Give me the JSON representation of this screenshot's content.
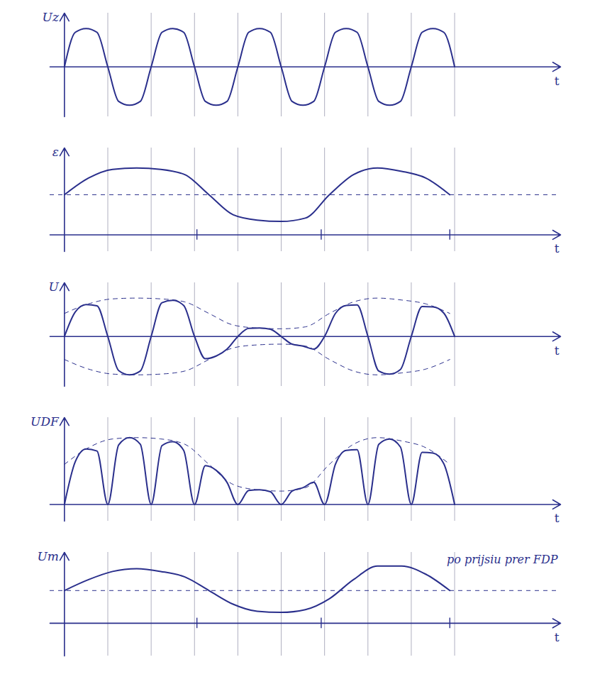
{
  "vertical_lines": [
    0.9,
    1.8,
    2.7,
    3.6,
    4.5,
    5.4,
    6.3,
    7.2,
    8.1
  ],
  "chart_data": [
    {
      "type": "line",
      "ylabel": "Uz",
      "xlabel": "t",
      "xlim": [
        -0.3,
        10.3
      ],
      "ylim": [
        -1.3,
        1.4
      ],
      "tick_labels": false,
      "color": "#2a2f8c",
      "series": [
        {
          "line_style": "solid",
          "x": [
            0,
            0.225,
            0.45,
            0.675,
            0.9,
            1.125,
            1.35,
            1.575,
            1.8,
            2.025,
            2.25,
            2.475,
            2.7,
            2.925,
            3.15,
            3.375,
            3.6,
            3.825,
            4.05,
            4.275,
            4.5,
            4.725,
            4.95,
            5.175,
            5.4,
            5.625,
            5.85,
            6.075,
            6.3,
            6.525,
            6.75,
            6.975,
            7.2,
            7.425,
            7.65,
            7.875,
            8.1
          ],
          "values": [
            0,
            0.9,
            1,
            0.9,
            0,
            -0.9,
            -1,
            -0.9,
            0,
            0.9,
            1,
            0.9,
            0,
            -0.9,
            -1,
            -0.9,
            0,
            0.9,
            1,
            0.9,
            0,
            -0.9,
            -1,
            -0.9,
            0,
            0.9,
            1,
            0.9,
            0,
            -0.9,
            -1,
            -0.9,
            0,
            0.9,
            1,
            0.9,
            0
          ]
        }
      ]
    },
    {
      "type": "line",
      "ylabel": "ε",
      "xlabel": "t",
      "xlim": [
        -0.3,
        10.3
      ],
      "ylim": [
        -0.25,
        1.3
      ],
      "tick_labels": false,
      "color": "#2a2f8c",
      "xticks": [
        2.75,
        5.33,
        8
      ],
      "reference_line": 0.6,
      "series": [
        {
          "line_style": "solid",
          "x": [
            0,
            0.5,
            1,
            1.5,
            2,
            2.5,
            3,
            3.5,
            4,
            4.5,
            5,
            5.5,
            6,
            6.5,
            7,
            7.5,
            8
          ],
          "values": [
            0.6,
            0.85,
            0.98,
            1.0,
            0.98,
            0.9,
            0.6,
            0.3,
            0.22,
            0.2,
            0.25,
            0.6,
            0.9,
            1.0,
            0.95,
            0.85,
            0.6
          ]
        }
      ]
    },
    {
      "type": "line",
      "ylabel": "U",
      "xlabel": "t",
      "xlim": [
        -0.3,
        10.3
      ],
      "ylim": [
        -1.3,
        1.4
      ],
      "tick_labels": false,
      "color": "#2a2f8c",
      "series": [
        {
          "line_style": "solid",
          "x": [
            0,
            0.225,
            0.45,
            0.675,
            0.9,
            1.125,
            1.35,
            1.575,
            1.8,
            2.025,
            2.25,
            2.475,
            2.7,
            2.925,
            3.15,
            3.375,
            3.6,
            3.825,
            4.05,
            4.275,
            4.5,
            4.725,
            4.95,
            5.175,
            5.4,
            5.625,
            5.85,
            6.075,
            6.3,
            6.525,
            6.75,
            6.975,
            7.2,
            7.425,
            7.65,
            7.875,
            8.1
          ],
          "values": [
            0,
            0.64,
            0.83,
            0.8,
            0,
            -0.89,
            -1.0,
            -0.9,
            0,
            0.88,
            0.94,
            0.81,
            0,
            -0.58,
            -0.51,
            -0.33,
            0,
            0.21,
            0.22,
            0.19,
            0,
            -0.2,
            -0.25,
            -0.33,
            0,
            0.6,
            0.81,
            0.82,
            0,
            -0.9,
            -0.98,
            -0.86,
            0,
            0.78,
            0.77,
            0.61,
            0
          ]
        },
        {
          "line_style": "dashed",
          "x": [
            0,
            0.5,
            1,
            1.5,
            2,
            2.5,
            3,
            3.5,
            4,
            4.5,
            5,
            5.5,
            6,
            6.5,
            7,
            7.5,
            8
          ],
          "values": [
            0.6,
            0.85,
            0.98,
            1.0,
            0.98,
            0.9,
            0.6,
            0.3,
            0.22,
            0.2,
            0.25,
            0.6,
            0.9,
            1.0,
            0.95,
            0.85,
            0.6
          ]
        },
        {
          "line_style": "dashed",
          "x": [
            0,
            0.5,
            1,
            1.5,
            2,
            2.5,
            3,
            3.5,
            4,
            4.5,
            5,
            5.5,
            6,
            6.5,
            7,
            7.5,
            8
          ],
          "values": [
            -0.6,
            -0.85,
            -0.98,
            -1.0,
            -0.98,
            -0.9,
            -0.6,
            -0.3,
            -0.22,
            -0.2,
            -0.25,
            -0.6,
            -0.9,
            -1.0,
            -0.95,
            -0.85,
            -0.6
          ]
        }
      ]
    },
    {
      "type": "line",
      "ylabel": "UDF",
      "xlabel": "t",
      "xlim": [
        -0.3,
        10.3
      ],
      "ylim": [
        -0.25,
        1.3
      ],
      "tick_labels": false,
      "color": "#2a2f8c",
      "series": [
        {
          "line_style": "solid",
          "x": [
            0,
            0.225,
            0.45,
            0.675,
            0.9,
            1.125,
            1.35,
            1.575,
            1.8,
            2.025,
            2.25,
            2.475,
            2.7,
            2.925,
            3.15,
            3.375,
            3.6,
            3.825,
            4.05,
            4.275,
            4.5,
            4.725,
            4.95,
            5.175,
            5.4,
            5.625,
            5.85,
            6.075,
            6.3,
            6.525,
            6.75,
            6.975,
            7.2,
            7.425,
            7.65,
            7.875,
            8.1
          ],
          "values": [
            0,
            0.64,
            0.83,
            0.8,
            0,
            0.89,
            1.0,
            0.9,
            0,
            0.88,
            0.94,
            0.81,
            0,
            0.58,
            0.51,
            0.33,
            0,
            0.21,
            0.22,
            0.19,
            0,
            0.2,
            0.25,
            0.33,
            0,
            0.6,
            0.81,
            0.82,
            0,
            0.9,
            0.98,
            0.86,
            0,
            0.78,
            0.77,
            0.61,
            0
          ]
        },
        {
          "line_style": "dashed",
          "x": [
            0,
            0.5,
            1,
            1.5,
            2,
            2.5,
            3,
            3.5,
            4,
            4.5,
            5,
            5.5,
            6,
            6.5,
            7,
            7.5,
            8
          ],
          "values": [
            0.6,
            0.85,
            0.98,
            1.0,
            0.98,
            0.9,
            0.6,
            0.3,
            0.22,
            0.2,
            0.25,
            0.6,
            0.9,
            1.0,
            0.95,
            0.85,
            0.6
          ]
        }
      ]
    },
    {
      "type": "line",
      "ylabel": "Um",
      "xlabel": "t",
      "xlim": [
        -0.3,
        10.3
      ],
      "ylim": [
        -0.6,
        1.3
      ],
      "tick_labels": false,
      "color": "#2a2f8c",
      "xticks": [
        2.75,
        5.33,
        8
      ],
      "reference_line": 0.6,
      "annotation": "po prijsiu prer FDP",
      "series": [
        {
          "line_style": "solid",
          "x": [
            0,
            0.5,
            1,
            1.5,
            2,
            2.5,
            3,
            3.5,
            4,
            4.5,
            5,
            5.5,
            6,
            6.5,
            7,
            7.5,
            8
          ],
          "values": [
            0.6,
            0.8,
            0.95,
            1.0,
            0.95,
            0.85,
            0.6,
            0.35,
            0.22,
            0.2,
            0.25,
            0.45,
            0.8,
            1.05,
            1.05,
            0.9,
            0.6
          ]
        }
      ]
    }
  ]
}
